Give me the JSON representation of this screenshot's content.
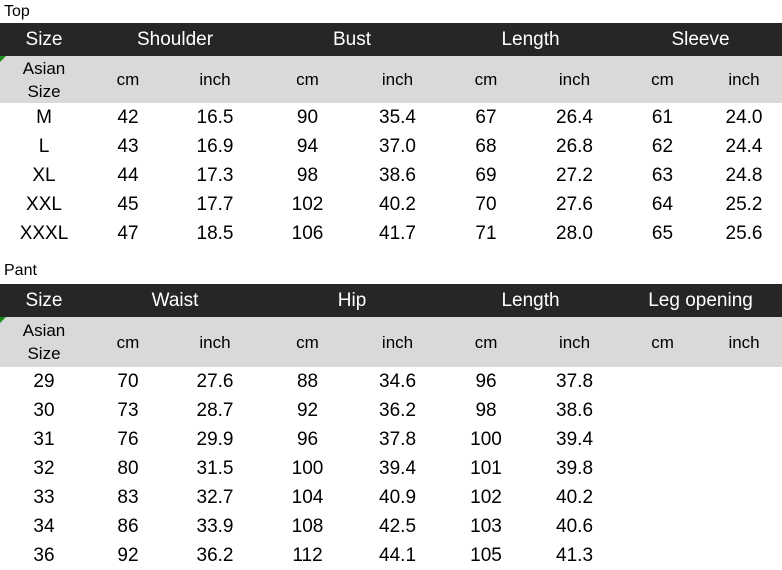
{
  "top": {
    "label": "Top",
    "size_header": "Size",
    "groups": [
      "Shoulder",
      "Bust",
      "Length",
      "Sleeve"
    ],
    "asian_size": "Asian\nSize",
    "units": [
      "cm",
      "inch",
      "cm",
      "inch",
      "cm",
      "inch",
      "cm",
      "inch"
    ],
    "rows": [
      [
        "M",
        "42",
        "16.5",
        "90",
        "35.4",
        "67",
        "26.4",
        "61",
        "24.0"
      ],
      [
        "L",
        "43",
        "16.9",
        "94",
        "37.0",
        "68",
        "26.8",
        "62",
        "24.4"
      ],
      [
        "XL",
        "44",
        "17.3",
        "98",
        "38.6",
        "69",
        "27.2",
        "63",
        "24.8"
      ],
      [
        "XXL",
        "45",
        "17.7",
        "102",
        "40.2",
        "70",
        "27.6",
        "64",
        "25.2"
      ],
      [
        "XXXL",
        "47",
        "18.5",
        "106",
        "41.7",
        "71",
        "28.0",
        "65",
        "25.6"
      ]
    ]
  },
  "pant": {
    "label": "Pant",
    "size_header": "Size",
    "groups": [
      "Waist",
      "Hip",
      "Length",
      "Leg opening"
    ],
    "asian_size": "Asian\nSize",
    "units": [
      "cm",
      "inch",
      "cm",
      "inch",
      "cm",
      "inch",
      "cm",
      "inch"
    ],
    "rows": [
      [
        "29",
        "70",
        "27.6",
        "88",
        "34.6",
        "96",
        "37.8",
        "",
        ""
      ],
      [
        "30",
        "73",
        "28.7",
        "92",
        "36.2",
        "98",
        "38.6",
        "",
        ""
      ],
      [
        "31",
        "76",
        "29.9",
        "96",
        "37.8",
        "100",
        "39.4",
        "",
        ""
      ],
      [
        "32",
        "80",
        "31.5",
        "100",
        "39.4",
        "101",
        "39.8",
        "",
        ""
      ],
      [
        "33",
        "83",
        "32.7",
        "104",
        "40.9",
        "102",
        "40.2",
        "",
        ""
      ],
      [
        "34",
        "86",
        "33.9",
        "108",
        "42.5",
        "103",
        "40.6",
        "",
        ""
      ],
      [
        "36",
        "92",
        "36.2",
        "112",
        "44.1",
        "105",
        "41.3",
        "",
        ""
      ]
    ]
  },
  "colors": {
    "header_bg": "#262626",
    "subheader_bg": "#d9d9d9",
    "comment_marker": "#1a8a1a"
  }
}
